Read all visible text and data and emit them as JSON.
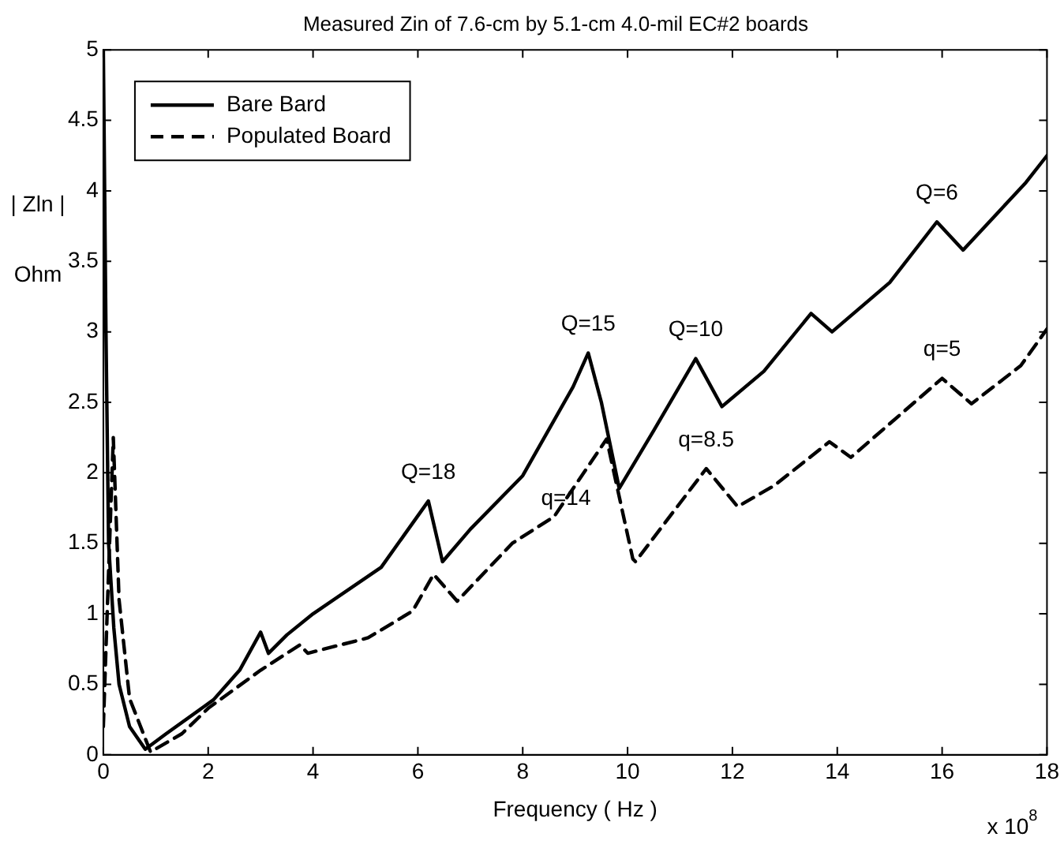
{
  "chart_data": {
    "type": "line",
    "title": "Measured Zin of 7.6-cm by 5.1-cm 4.0-mil EC#2 boards",
    "xlabel": "Frequency ( Hz )",
    "ylabel": "| Zln |",
    "xlim": [
      0,
      18
    ],
    "xticks": [
      0,
      2,
      4,
      6,
      8,
      10,
      12,
      14,
      16,
      18
    ],
    "ylim": [
      0,
      5
    ],
    "yticks": [
      0,
      0.5,
      1,
      1.5,
      2,
      2.5,
      3,
      3.5,
      4,
      4.5,
      5
    ],
    "grid": false,
    "legend": "top left",
    "marker": "none",
    "series": [
      {
        "name": "Bare Bard",
        "color": "#000000",
        "line_style": "solid",
        "x": [
          0,
          0.05,
          0.1,
          0.2,
          0.3,
          0.5,
          0.8,
          1.2,
          2.1,
          2.6,
          3.0,
          3.15,
          3.5,
          4,
          5.3,
          6.2,
          6.47,
          7,
          8,
          8.96,
          9.25,
          9.5,
          9.84,
          10.5,
          11.3,
          11.8,
          12.6,
          13.5,
          13.9,
          15,
          15.9,
          16.4,
          17.6,
          18
        ],
        "values": [
          5,
          3.0,
          1.5,
          0.9,
          0.5,
          0.2,
          0.04,
          0.15,
          0.39,
          0.6,
          0.87,
          0.72,
          0.85,
          1.0,
          1.33,
          1.8,
          1.37,
          1.6,
          1.98,
          2.61,
          2.85,
          2.5,
          1.89,
          2.3,
          2.81,
          2.47,
          2.72,
          3.13,
          3.0,
          3.35,
          3.78,
          3.58,
          4.06,
          4.25
        ]
      },
      {
        "name": "Populated Board",
        "color": "#000000",
        "line_style": "dashed",
        "x": [
          0,
          0.1,
          0.19,
          0.3,
          0.5,
          0.9,
          1.5,
          2,
          3,
          3.75,
          3.9,
          5.05,
          5.9,
          6.3,
          6.75,
          7.8,
          8.6,
          9.6,
          10.1,
          10.15,
          11.5,
          12.1,
          12.8,
          13.85,
          14.26,
          16,
          16.56,
          17.5,
          18
        ],
        "values": [
          0.2,
          1.3,
          2.25,
          1.1,
          0.4,
          0.02,
          0.15,
          0.33,
          0.6,
          0.78,
          0.72,
          0.83,
          1.02,
          1.28,
          1.09,
          1.5,
          1.69,
          2.24,
          1.39,
          1.37,
          2.03,
          1.76,
          1.91,
          2.22,
          2.11,
          2.67,
          2.49,
          2.76,
          3.02
        ]
      }
    ],
    "annotations": [
      {
        "text": "Q=18",
        "x": 6.2,
        "y": 1.8
      },
      {
        "text": "Q=15",
        "x": 9.25,
        "y": 2.85
      },
      {
        "text": "Q=10",
        "x": 11.3,
        "y": 2.81
      },
      {
        "text": "Q=6",
        "x": 15.9,
        "y": 3.78
      },
      {
        "text": "q=14",
        "x": 9.6,
        "y": 2.24
      },
      {
        "text": "q=8.5",
        "x": 11.5,
        "y": 2.03
      },
      {
        "text": "q=5",
        "x": 16.0,
        "y": 2.67
      },
      "Ohm",
      "x 10$^{8}$"
    ]
  }
}
